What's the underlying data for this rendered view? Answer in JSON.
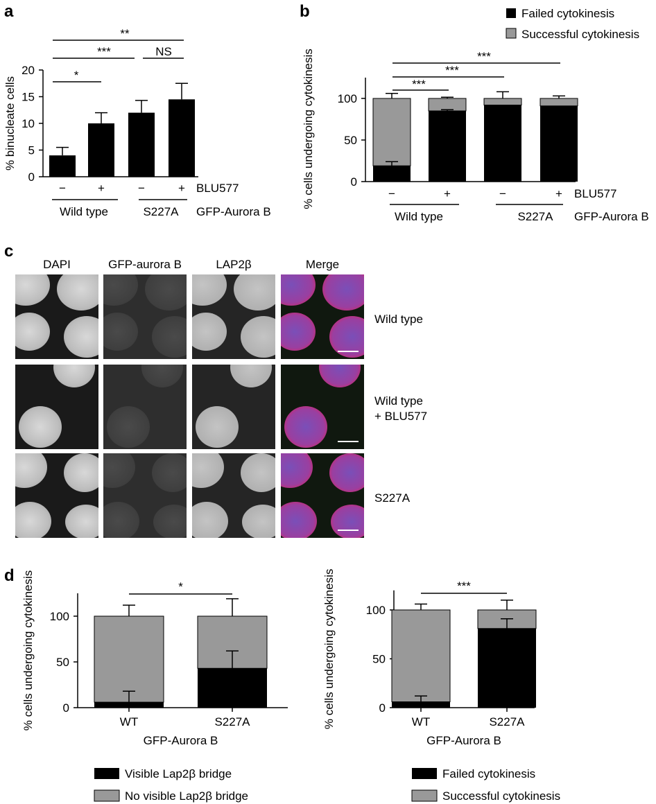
{
  "panels": {
    "a": "a",
    "b": "b",
    "c": "c",
    "d": "d"
  },
  "chart_a": {
    "type": "bar",
    "ylabel": "% binucleate cells",
    "ylim": [
      0,
      20
    ],
    "yticks": [
      "0",
      "5",
      "10",
      "15",
      "20"
    ],
    "categories": [
      "Wild type −",
      "Wild type +",
      "S227A −",
      "S227A +"
    ],
    "values": [
      4.0,
      10.0,
      12.0,
      14.5
    ],
    "errors": [
      1.5,
      2.0,
      2.3,
      3.0
    ],
    "sign_labels": [
      "−",
      "+",
      "−",
      "+"
    ],
    "drug_label": "BLU577",
    "groups": [
      "Wild type",
      "S227A"
    ],
    "group_label": "GFP-Aurora B",
    "sig": [
      "*",
      "***",
      "NS",
      "**"
    ]
  },
  "chart_b": {
    "type": "bar",
    "ylabel": "% cells undergoing cytokinesis",
    "ylim": [
      0,
      125
    ],
    "yticks": [
      "0",
      "50",
      "100"
    ],
    "legend": [
      "Failed cytokinesis",
      "Successful cytokinesis"
    ],
    "series": [
      {
        "name": "Failed cytokinesis",
        "values": [
          19,
          85,
          92,
          91
        ],
        "errors": [
          5,
          1.5,
          0,
          0
        ]
      },
      {
        "name": "Successful cytokinesis",
        "values": [
          81,
          15,
          8,
          9
        ],
        "errors": [
          6,
          1.5,
          8,
          3
        ]
      }
    ],
    "sign_labels": [
      "−",
      "+",
      "−",
      "+"
    ],
    "drug_label": "BLU577",
    "groups": [
      "Wild type",
      "S227A"
    ],
    "group_label": "GFP-Aurora B",
    "sig": [
      "***",
      "***",
      "***"
    ]
  },
  "micro": {
    "columns": [
      "DAPI",
      "GFP-aurora B",
      "LAP2β",
      "Merge"
    ],
    "rows": [
      [
        "Wild type"
      ],
      [
        "Wild type",
        "+ BLU577"
      ],
      [
        "S227A"
      ]
    ]
  },
  "chart_d1": {
    "type": "bar",
    "ylabel": "% cells undergoing cytokinesis",
    "ylim": [
      0,
      125
    ],
    "yticks": [
      "0",
      "50",
      "100"
    ],
    "categories": [
      "WT",
      "S227A"
    ],
    "xlabel": "GFP-Aurora B",
    "series": [
      {
        "name": "Visible Lap2β bridge",
        "values": [
          6,
          43
        ],
        "errors": [
          12,
          19
        ]
      },
      {
        "name": "No  visible Lap2β bridge",
        "values": [
          94,
          57
        ],
        "errors": [
          12,
          19
        ]
      }
    ],
    "sig": "*"
  },
  "chart_d2": {
    "type": "bar",
    "ylabel": "% cells undergoing cytokinesis",
    "ylim": [
      0,
      120
    ],
    "yticks": [
      "0",
      "50",
      "100"
    ],
    "categories": [
      "WT",
      "S227A"
    ],
    "xlabel": "GFP-Aurora B",
    "series": [
      {
        "name": "Failed cytokinesis",
        "values": [
          6,
          81
        ],
        "errors": [
          6,
          10
        ]
      },
      {
        "name": "Successful cytokinesis",
        "values": [
          94,
          19
        ],
        "errors": [
          6,
          10
        ]
      }
    ],
    "sig": "***"
  },
  "colors": {
    "failed": "#000000",
    "success": "#999999",
    "axis": "#000000"
  }
}
